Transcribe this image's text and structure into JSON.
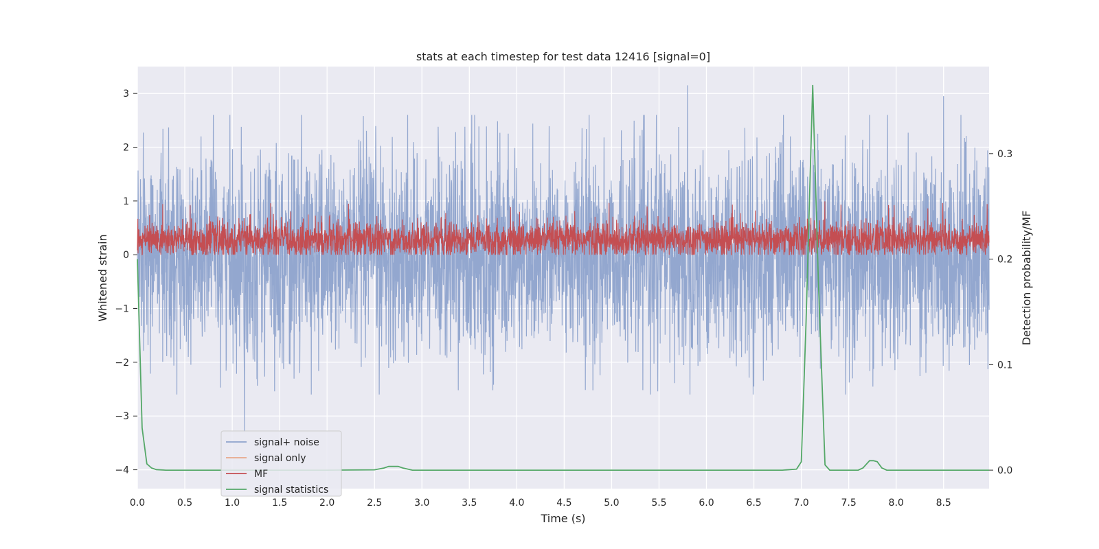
{
  "chart_data": {
    "type": "line",
    "title": "stats at each timestep for test data 12416 [signal=0]",
    "xlabel": "Time (s)",
    "ylabel": "Whitened strain",
    "y2label": "Detection probability/MF",
    "xlim": [
      0.0,
      8.98
    ],
    "ylim": [
      -4.35,
      3.5
    ],
    "y2lim": [
      -0.0175,
      0.3825
    ],
    "xticks": [
      0.0,
      0.5,
      1.0,
      1.5,
      2.0,
      2.5,
      3.0,
      3.5,
      4.0,
      4.5,
      5.0,
      5.5,
      6.0,
      6.5,
      7.0,
      7.5,
      8.0,
      8.5
    ],
    "xtick_labels": [
      "0.0",
      "0.5",
      "1.0",
      "1.5",
      "2.0",
      "2.5",
      "3.0",
      "3.5",
      "4.0",
      "4.5",
      "5.0",
      "5.5",
      "6.0",
      "6.5",
      "7.0",
      "7.5",
      "8.0",
      "8.5"
    ],
    "yticks": [
      -4,
      -3,
      -2,
      -1,
      0,
      1,
      2,
      3
    ],
    "ytick_labels": [
      "−4",
      "−3",
      "−2",
      "−1",
      "0",
      "1",
      "2",
      "3"
    ],
    "y2ticks": [
      0.0,
      0.1,
      0.2,
      0.3
    ],
    "y2tick_labels": [
      "0.0",
      "0.1",
      "0.2",
      "0.3"
    ],
    "grid": true,
    "legend_position": "lower-left",
    "series": [
      {
        "name": "signal+ noise",
        "color": "#8ea3cc",
        "axis": "left",
        "style": "dense-noise",
        "approx_range": [
          -3.3,
          3.15
        ],
        "notable_peaks": [
          [
            1.13,
            -3.3
          ],
          [
            5.8,
            3.15
          ],
          [
            8.5,
            2.95
          ]
        ],
        "x": [],
        "y": []
      },
      {
        "name": "signal only",
        "color": "#e8a88a",
        "axis": "left",
        "x": [],
        "y": []
      },
      {
        "name": "MF",
        "color": "#c44e52",
        "axis": "left",
        "style": "dense-noise",
        "approx_range": [
          0.0,
          1.0
        ],
        "x": [],
        "y": []
      },
      {
        "name": "signal statistics",
        "color": "#55a868",
        "axis": "right",
        "x": [
          0.0,
          0.05,
          0.1,
          0.15,
          0.2,
          0.3,
          0.5,
          1.0,
          2.0,
          2.5,
          2.6,
          2.65,
          2.75,
          2.8,
          2.9,
          3.0,
          4.0,
          5.0,
          6.0,
          6.8,
          6.95,
          7.0,
          7.05,
          7.12,
          7.18,
          7.25,
          7.3,
          7.6,
          7.65,
          7.72,
          7.76,
          7.8,
          7.85,
          7.9,
          8.0,
          8.5,
          8.98
        ],
        "y": [
          0.2,
          0.04,
          0.006,
          0.002,
          0.0005,
          0.0,
          0.0,
          0.0,
          0.0,
          0.0003,
          0.002,
          0.0035,
          0.0035,
          0.002,
          0.0,
          0.0,
          0.0,
          0.0,
          0.0,
          0.0,
          0.001,
          0.008,
          0.14,
          0.365,
          0.18,
          0.005,
          0.0,
          0.0,
          0.002,
          0.009,
          0.009,
          0.008,
          0.002,
          0.0,
          0.0,
          0.0,
          0.0
        ]
      }
    ]
  }
}
